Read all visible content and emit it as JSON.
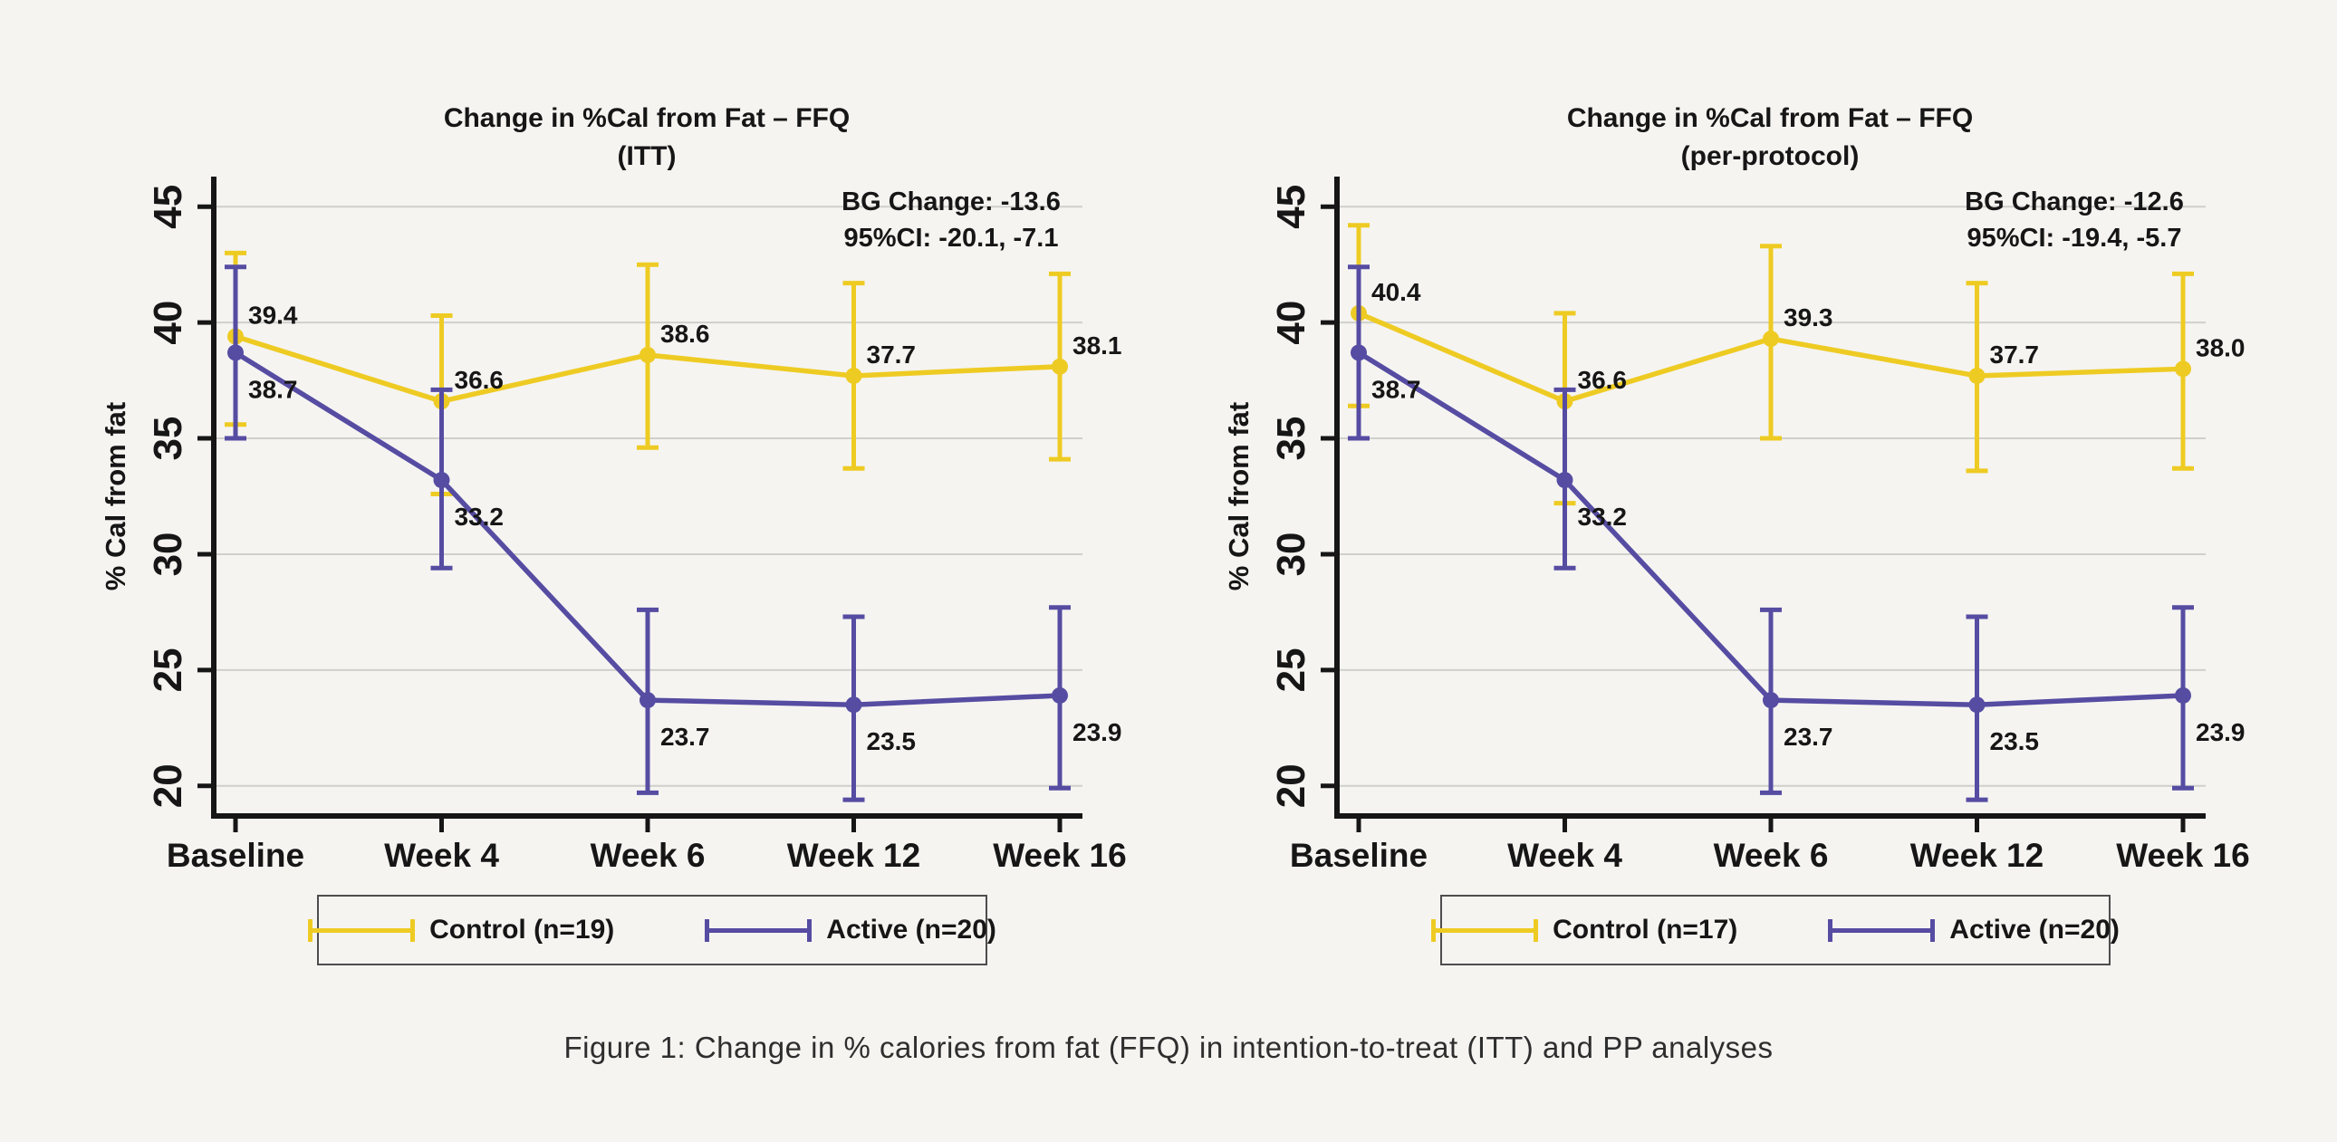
{
  "page": {
    "background": "#f5f4f1",
    "caption": "Figure 1: Change in % calories from fat (FFQ) in intention-to-treat (ITT) and PP analyses"
  },
  "colors": {
    "control": "#eecb23",
    "active": "#564ca2",
    "grid": "#cfcfcc",
    "axis": "#161616",
    "text": "#161616",
    "legend_border": "#4d4d4d"
  },
  "chart_data": [
    {
      "type": "line",
      "title": "Change in %Cal from Fat – FFQ",
      "subtitle": "(ITT)",
      "ylabel": "% Cal from fat",
      "xlabel": "",
      "categories": [
        "Baseline",
        "Week 4",
        "Week 6",
        "Week 12",
        "Week 16"
      ],
      "yticks": [
        20,
        25,
        30,
        35,
        40,
        45
      ],
      "ylim": [
        18.7,
        46.3
      ],
      "grid": true,
      "legend_position": "bottom",
      "annotation_line1": "BG Change: -13.6",
      "annotation_line2": "95%CI: -20.1, -7.1",
      "series": [
        {
          "name": "Control (n=19)",
          "color": "control",
          "values": [
            39.4,
            36.6,
            38.6,
            37.7,
            38.1
          ],
          "ci_low": [
            35.6,
            32.6,
            34.6,
            33.7,
            34.1
          ],
          "ci_high": [
            43.0,
            40.3,
            42.5,
            41.7,
            42.1
          ],
          "label_side": "above"
        },
        {
          "name": "Active (n=20)",
          "color": "active",
          "values": [
            38.7,
            33.2,
            23.7,
            23.5,
            23.9
          ],
          "ci_low": [
            35.0,
            29.4,
            19.7,
            19.4,
            19.9
          ],
          "ci_high": [
            42.4,
            37.1,
            27.6,
            27.3,
            27.7
          ],
          "label_side": "below"
        }
      ]
    },
    {
      "type": "line",
      "title": "Change in %Cal from Fat – FFQ",
      "subtitle": "(per-protocol)",
      "ylabel": "% Cal from fat",
      "xlabel": "",
      "categories": [
        "Baseline",
        "Week 4",
        "Week 6",
        "Week 12",
        "Week 16"
      ],
      "yticks": [
        20,
        25,
        30,
        35,
        40,
        45
      ],
      "ylim": [
        18.7,
        46.3
      ],
      "grid": true,
      "legend_position": "bottom",
      "annotation_line1": "BG Change: -12.6",
      "annotation_line2": "95%CI: -19.4, -5.7",
      "series": [
        {
          "name": "Control (n=17)",
          "color": "control",
          "values": [
            40.4,
            36.6,
            39.3,
            37.7,
            38.0
          ],
          "ci_low": [
            36.4,
            32.2,
            35.0,
            33.6,
            33.7
          ],
          "ci_high": [
            44.2,
            40.4,
            43.3,
            41.7,
            42.1
          ],
          "label_side": "above"
        },
        {
          "name": "Active (n=20)",
          "color": "active",
          "values": [
            38.7,
            33.2,
            23.7,
            23.5,
            23.9
          ],
          "ci_low": [
            35.0,
            29.4,
            19.7,
            19.4,
            19.9
          ],
          "ci_high": [
            42.4,
            37.1,
            27.6,
            27.3,
            27.7
          ],
          "label_side": "below"
        }
      ]
    }
  ]
}
